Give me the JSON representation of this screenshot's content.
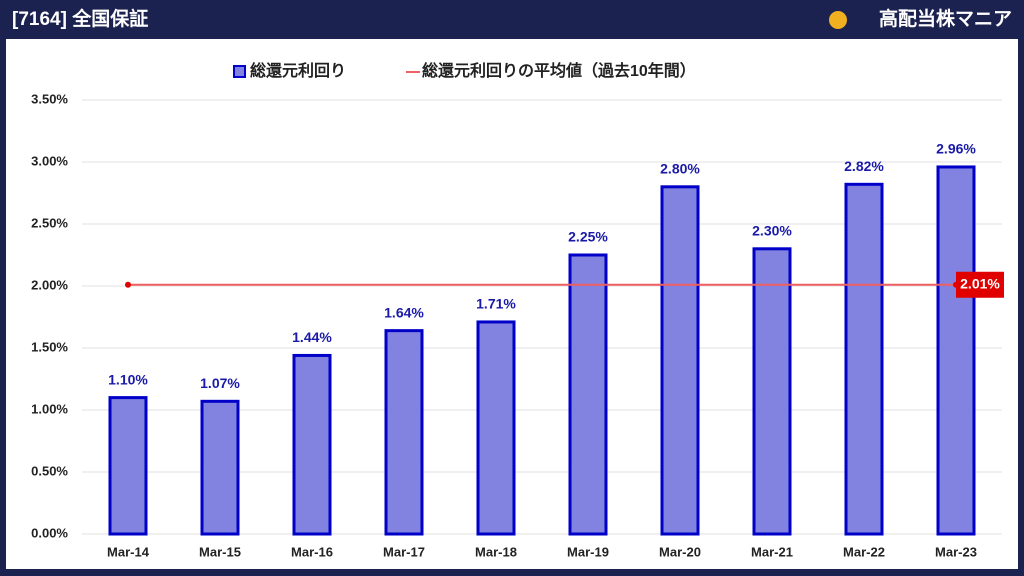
{
  "header": {
    "title": "[7164] 全国保証",
    "brand": "高配当株マニア"
  },
  "chart_data": {
    "type": "bar",
    "categories": [
      "Mar-14",
      "Mar-15",
      "Mar-16",
      "Mar-17",
      "Mar-18",
      "Mar-19",
      "Mar-20",
      "Mar-21",
      "Mar-22",
      "Mar-23"
    ],
    "series": [
      {
        "name": "総還元利回り",
        "color": "#8282e0",
        "stroke": "#0000c8",
        "values": [
          1.1,
          1.07,
          1.44,
          1.64,
          1.71,
          2.25,
          2.8,
          2.3,
          2.82,
          2.96
        ],
        "value_labels": [
          "1.10%",
          "1.07%",
          "1.44%",
          "1.64%",
          "1.71%",
          "2.25%",
          "2.80%",
          "2.30%",
          "2.82%",
          "2.96%"
        ]
      }
    ],
    "average": {
      "name": "総還元利回りの平均値（過去10年間）",
      "color": "#f06060",
      "value": 2.01,
      "value_label": "2.01%"
    },
    "ylim": [
      0,
      3.5
    ],
    "yticks": [
      {
        "value": 0,
        "label": "0.00%"
      },
      {
        "value": 0.5,
        "label": "0.50%"
      },
      {
        "value": 1,
        "label": "1.00%"
      },
      {
        "value": 1.5,
        "label": "1.50%"
      },
      {
        "value": 2,
        "label": "2.00%"
      },
      {
        "value": 2.5,
        "label": "2.50%"
      },
      {
        "value": 3,
        "label": "3.00%"
      },
      {
        "value": 3.5,
        "label": "3.50%"
      }
    ],
    "grid": true
  }
}
